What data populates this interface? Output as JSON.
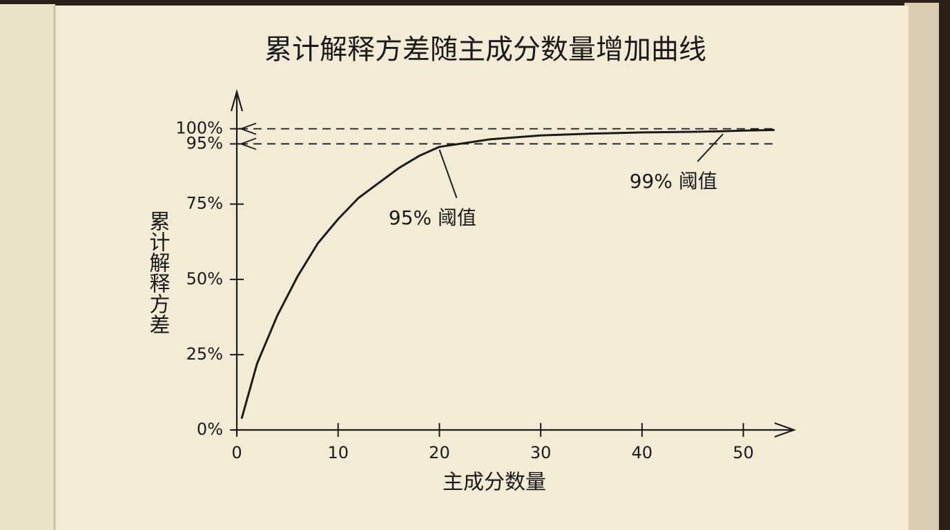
{
  "chart_data": {
    "type": "line",
    "title": "累计解释方差随主成分数量增加曲线",
    "xlabel": "主成分数量",
    "ylabel": "累计解释方差",
    "x": [
      0.5,
      2,
      4,
      6,
      8,
      10,
      12,
      14,
      16,
      18,
      20,
      25,
      30,
      35,
      40,
      45,
      48,
      50,
      53
    ],
    "values": [
      4,
      22,
      38,
      51,
      62,
      70,
      77,
      82,
      87,
      91,
      94,
      96.5,
      97.8,
      98.4,
      98.8,
      99,
      99.2,
      99.4,
      99.6
    ],
    "color": "#1a1a1a",
    "xlim": [
      0,
      55
    ],
    "ylim": [
      0,
      110
    ],
    "xticks": [
      0,
      10,
      20,
      30,
      40,
      50
    ],
    "yticks": [
      {
        "value": 0,
        "label": "0%"
      },
      {
        "value": 25,
        "label": "25%"
      },
      {
        "value": 50,
        "label": "50%"
      },
      {
        "value": 75,
        "label": "75%"
      },
      {
        "value": 95,
        "label": "95%"
      },
      {
        "value": 100,
        "label": "100%"
      }
    ],
    "hlines": [
      100,
      95
    ],
    "annotations": [
      {
        "text": "95% 阈值",
        "x": 20,
        "y": 94
      },
      {
        "text": "99% 阈值",
        "x": 48,
        "y": 99.2
      }
    ]
  }
}
